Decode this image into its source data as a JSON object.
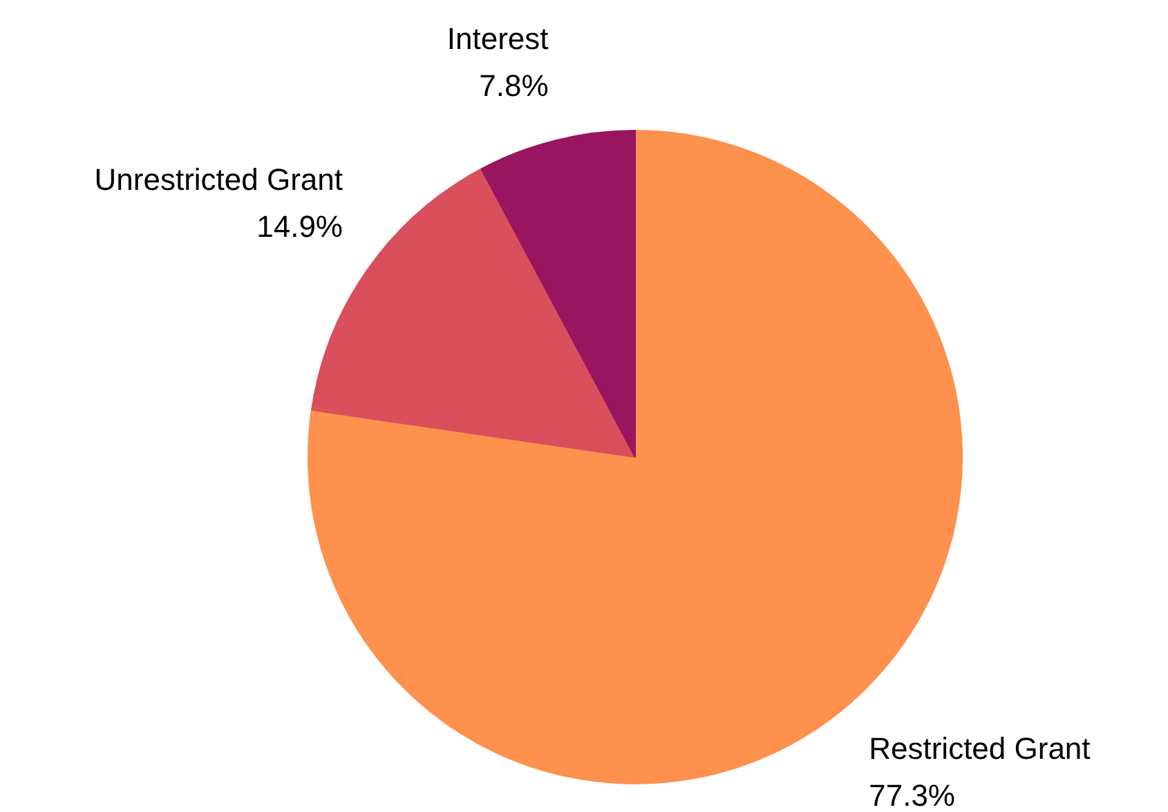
{
  "chart_data": {
    "type": "pie",
    "categories": [
      "Restricted Grant",
      "Unrestricted Grant",
      "Interest"
    ],
    "values": [
      77.3,
      14.9,
      7.8
    ],
    "value_labels": [
      "77.3%",
      "14.9%",
      "7.8%"
    ],
    "colors": [
      "#fe914e",
      "#d94f5b",
      "#99155f"
    ],
    "legend": false
  }
}
